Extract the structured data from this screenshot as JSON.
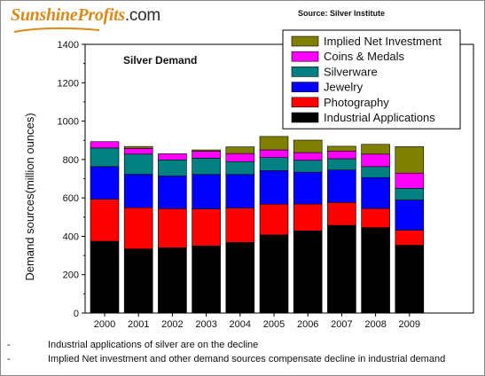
{
  "header": {
    "logo_text": "SunshineProfits",
    "logo_suffix": ".com",
    "source": "Source: Silver Institute"
  },
  "notes": [
    {
      "bullet": "-",
      "text": "Industrial applications of silver are on the decline"
    },
    {
      "bullet": "-",
      "text": "Implied Net investment and other demand sources compensate decline in industrial demand"
    }
  ],
  "chart_data": {
    "type": "bar",
    "stacked": true,
    "title": "Silver Demand",
    "xlabel": "",
    "ylabel": "Demand sources(million ounces)",
    "ylim": [
      0,
      1400
    ],
    "yticks": [
      0,
      200,
      400,
      600,
      800,
      1000,
      1200,
      1400
    ],
    "grid": false,
    "legend_position": "top-right",
    "categories": [
      "2000",
      "2001",
      "2002",
      "2003",
      "2004",
      "2005",
      "2006",
      "2007",
      "2008",
      "2009"
    ],
    "series": [
      {
        "name": "Industrial Applications",
        "color": "#000000",
        "values": [
          374,
          334,
          340,
          350,
          368,
          407,
          428,
          457,
          445,
          353
        ]
      },
      {
        "name": "Photography",
        "color": "#ff0000",
        "values": [
          219,
          215,
          204,
          193,
          179,
          160,
          140,
          119,
          100,
          79
        ]
      },
      {
        "name": "Jewelry",
        "color": "#0000ff",
        "values": [
          170,
          174,
          170,
          179,
          175,
          175,
          166,
          169,
          161,
          157
        ]
      },
      {
        "name": "Silverware",
        "color": "#008080",
        "values": [
          97,
          105,
          84,
          85,
          67,
          68,
          62,
          59,
          57,
          61
        ]
      },
      {
        "name": "Coins & Medals",
        "color": "#ff00ff",
        "values": [
          33,
          30,
          32,
          36,
          42,
          40,
          40,
          40,
          65,
          79
        ]
      },
      {
        "name": "Implied Net Investment",
        "color": "#808000",
        "values": [
          0,
          10,
          0,
          7,
          35,
          70,
          65,
          25,
          51,
          138
        ]
      }
    ]
  }
}
